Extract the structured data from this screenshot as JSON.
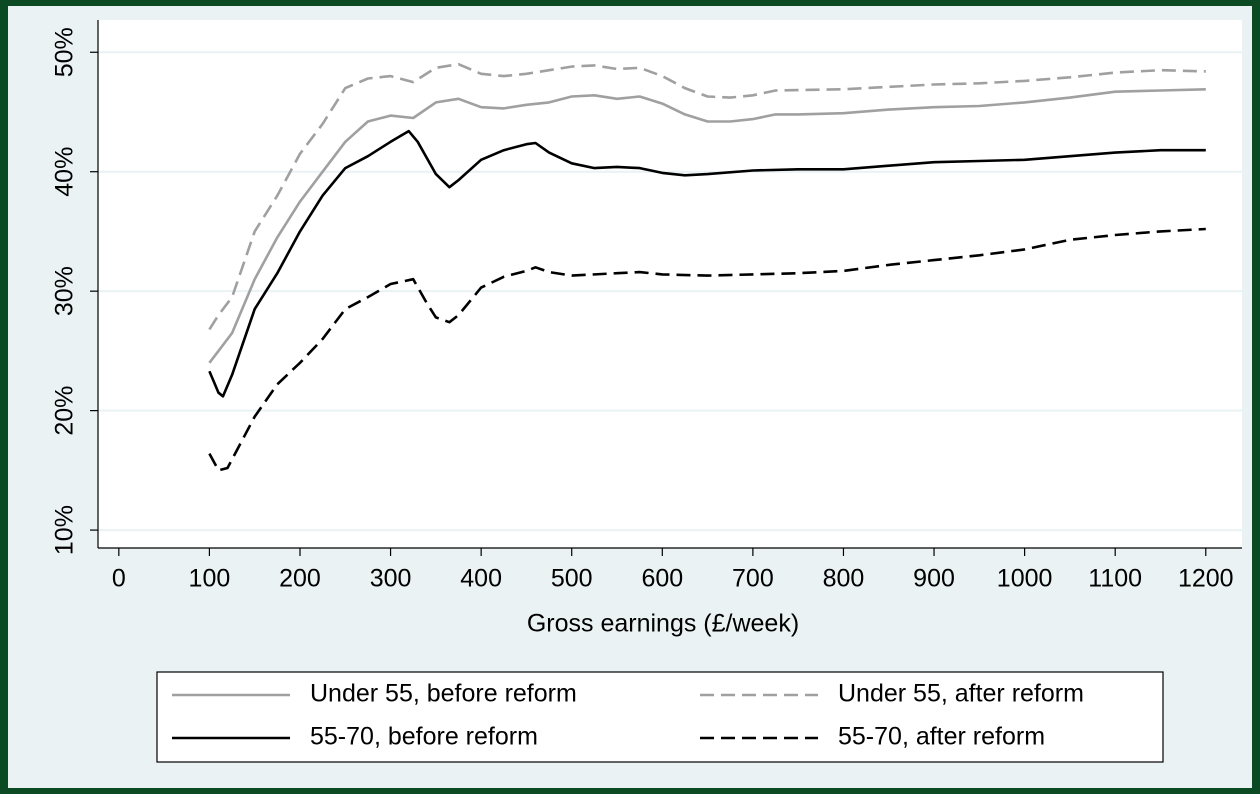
{
  "chart_data": {
    "type": "line",
    "x_label": "Gross earnings (£/week)",
    "xlim": [
      -23,
      1240
    ],
    "xticks": [
      0,
      100,
      200,
      300,
      400,
      500,
      600,
      700,
      800,
      900,
      1000,
      1100,
      1200
    ],
    "ylim": [
      8.5,
      52.7
    ],
    "yticks": [
      {
        "value": 10,
        "label": "10%"
      },
      {
        "value": 20,
        "label": "20%"
      },
      {
        "value": 30,
        "label": "30%"
      },
      {
        "value": 40,
        "label": "40%"
      },
      {
        "value": 50,
        "label": "50%"
      }
    ],
    "grid": true,
    "legend": "bottom",
    "series": [
      {
        "name": "Under 55, before reform",
        "color": "#a0a0a0",
        "style": "solid",
        "x": [
          100,
          110,
          125,
          150,
          175,
          200,
          225,
          250,
          275,
          300,
          325,
          350,
          375,
          400,
          425,
          450,
          475,
          500,
          525,
          550,
          575,
          600,
          625,
          650,
          675,
          700,
          725,
          750,
          800,
          850,
          900,
          950,
          1000,
          1050,
          1100,
          1150,
          1200
        ],
        "values": [
          24,
          25,
          26.5,
          31,
          34.5,
          37.5,
          40,
          42.5,
          44.2,
          44.7,
          44.5,
          45.8,
          46.1,
          45.4,
          45.3,
          45.6,
          45.8,
          46.3,
          46.4,
          46.1,
          46.3,
          45.7,
          44.8,
          44.2,
          44.2,
          44.4,
          44.8,
          44.8,
          44.9,
          45.2,
          45.4,
          45.5,
          45.8,
          46.2,
          46.7,
          46.8,
          46.9
        ]
      },
      {
        "name": "Under 55, after reform",
        "color": "#a0a0a0",
        "style": "dashed",
        "x": [
          100,
          110,
          125,
          150,
          175,
          200,
          225,
          250,
          275,
          300,
          325,
          350,
          375,
          400,
          425,
          450,
          475,
          500,
          525,
          550,
          575,
          600,
          625,
          650,
          675,
          700,
          725,
          800,
          850,
          900,
          950,
          1000,
          1050,
          1100,
          1150,
          1200
        ],
        "values": [
          26.8,
          28,
          29.5,
          35,
          38,
          41.5,
          44,
          47,
          47.8,
          48,
          47.5,
          48.7,
          49,
          48.2,
          48,
          48.2,
          48.5,
          48.8,
          48.9,
          48.6,
          48.7,
          48,
          47,
          46.3,
          46.2,
          46.4,
          46.8,
          46.9,
          47.1,
          47.3,
          47.4,
          47.6,
          47.9,
          48.3,
          48.5,
          48.4
        ]
      },
      {
        "name": "55-70, before reform",
        "color": "#000000",
        "style": "solid",
        "x": [
          100,
          110,
          115,
          125,
          150,
          175,
          200,
          225,
          250,
          275,
          300,
          320,
          330,
          350,
          365,
          375,
          400,
          425,
          450,
          460,
          475,
          500,
          525,
          550,
          575,
          600,
          625,
          650,
          700,
          750,
          800,
          850,
          900,
          950,
          1000,
          1050,
          1100,
          1150,
          1200
        ],
        "values": [
          23.3,
          21.5,
          21.2,
          23,
          28.5,
          31.5,
          35,
          38,
          40.3,
          41.3,
          42.5,
          43.4,
          42.5,
          39.8,
          38.7,
          39.3,
          41,
          41.8,
          42.3,
          42.4,
          41.6,
          40.7,
          40.3,
          40.4,
          40.3,
          39.9,
          39.7,
          39.8,
          40.1,
          40.2,
          40.2,
          40.5,
          40.8,
          40.9,
          41,
          41.3,
          41.6,
          41.8,
          41.8
        ]
      },
      {
        "name": "55-70, after reform",
        "color": "#000000",
        "style": "dashed",
        "x": [
          100,
          110,
          120,
          150,
          175,
          200,
          225,
          250,
          275,
          300,
          325,
          340,
          350,
          365,
          375,
          400,
          425,
          450,
          460,
          475,
          500,
          550,
          575,
          600,
          650,
          700,
          750,
          800,
          850,
          900,
          950,
          1000,
          1050,
          1100,
          1150,
          1200
        ],
        "values": [
          16.4,
          15,
          15.2,
          19.5,
          22.2,
          24,
          26,
          28.5,
          29.5,
          30.6,
          31,
          29,
          27.8,
          27.4,
          28,
          30.3,
          31.2,
          31.7,
          32,
          31.6,
          31.3,
          31.5,
          31.6,
          31.4,
          31.3,
          31.4,
          31.5,
          31.7,
          32.2,
          32.6,
          33,
          33.5,
          34.3,
          34.7,
          35,
          35.2
        ]
      }
    ]
  }
}
